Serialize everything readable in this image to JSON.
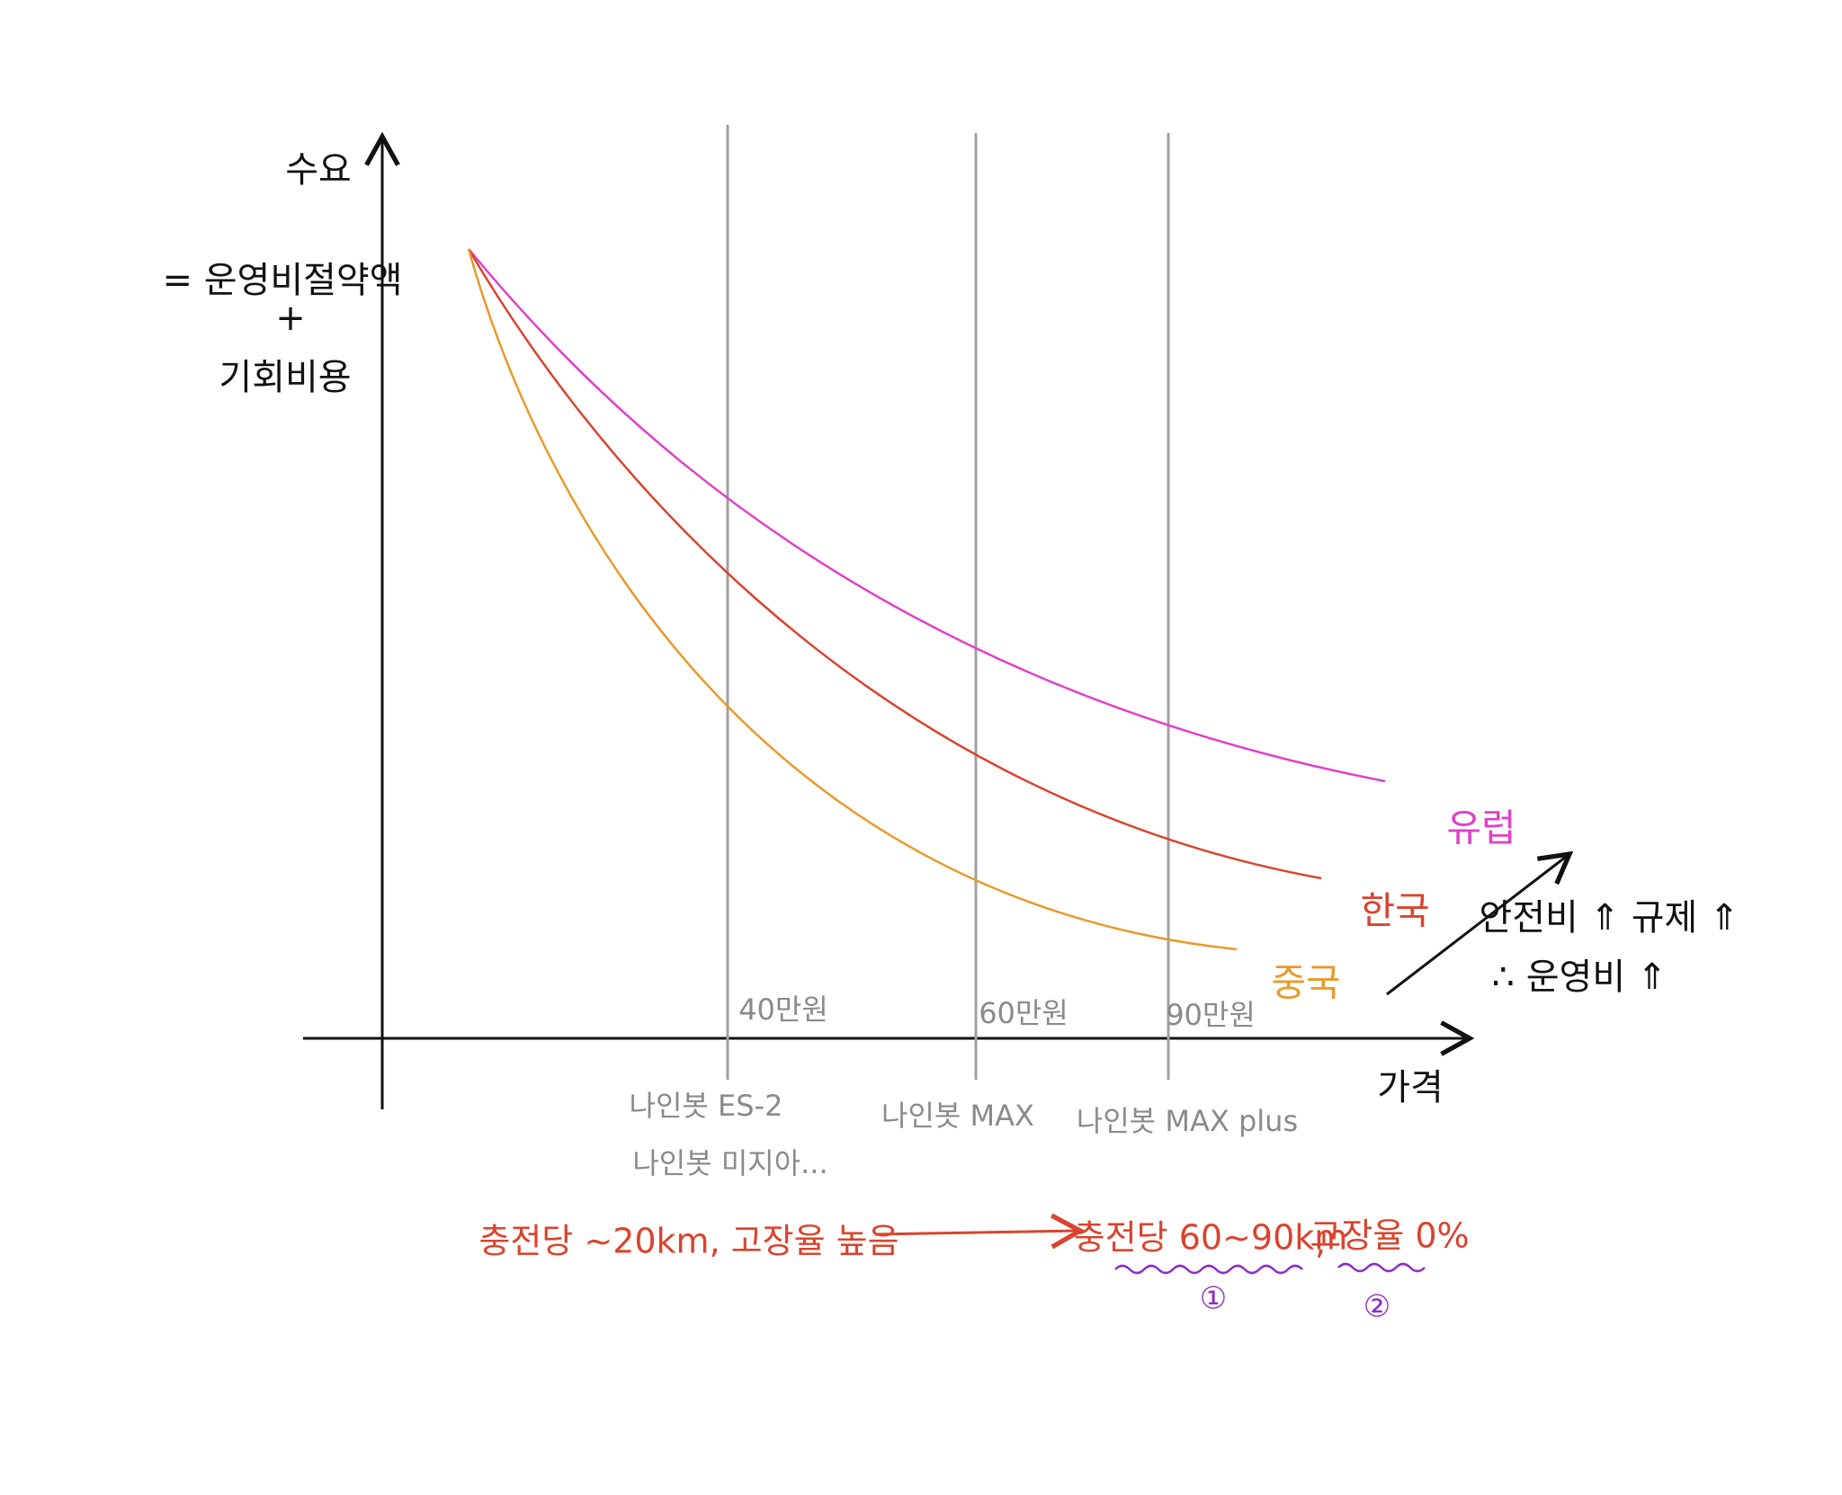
{
  "axes": {
    "y_label": "수요",
    "y_note": [
      "= 운영비절약액",
      "+",
      "기회비용"
    ],
    "x_label": "가격"
  },
  "price_lines": [
    {
      "price": "40만원",
      "models": [
        "나인봇 ES-2",
        "나인봇 미지아..."
      ]
    },
    {
      "price": "60만원",
      "models": [
        "나인봇 MAX"
      ]
    },
    {
      "price": "90만원",
      "models": [
        "나인봇 MAX plus"
      ]
    }
  ],
  "curves": [
    {
      "label": "유럽",
      "color": "#e040c8"
    },
    {
      "label": "한국",
      "color": "#d9442e"
    },
    {
      "label": "중국",
      "color": "#e89a2a"
    }
  ],
  "note": {
    "lines": [
      "안전비 ⇑ 규제 ⇑",
      "∴ 운영비 ⇑"
    ]
  },
  "comparison": {
    "before": "충전당 ~20km, 고장율 높음",
    "after": [
      {
        "text": "충전당 60~90km",
        "marker": "①"
      },
      {
        "text": "고장율 0%",
        "marker": "②"
      }
    ],
    "separator": ","
  }
}
